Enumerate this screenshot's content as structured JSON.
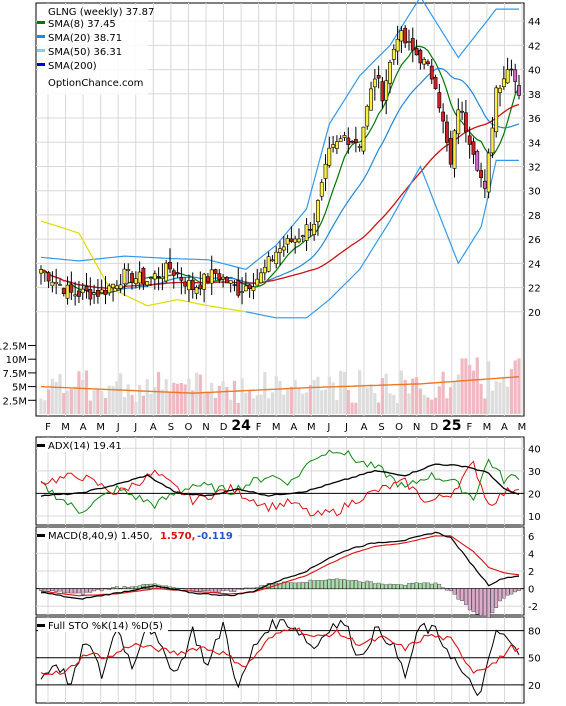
{
  "chart_data": [
    {
      "type": "candlestick",
      "panel": "price",
      "title": "GLNG (weekly) 37.87",
      "watermark": "OptionChance.com",
      "y_ticks": [
        20,
        22,
        24,
        26,
        28,
        30,
        32,
        34,
        36,
        38,
        40,
        42,
        44
      ],
      "ylim": [
        18,
        45.5
      ],
      "legend": [
        {
          "label": "SMA(8) 37.45",
          "color": "#007700"
        },
        {
          "label": "SMA(20) 38.71",
          "color": "#2288dd"
        },
        {
          "label": "SMA(50) 36.31",
          "color": "#88ccee"
        },
        {
          "label": "SMA(200)",
          "color": "#0000cc"
        }
      ],
      "x_month_labels": [
        "F",
        "M",
        "A",
        "M",
        "J",
        "J",
        "A",
        "S",
        "O",
        "N",
        "D",
        "24",
        "F",
        "M",
        "A",
        "M",
        "J",
        "J",
        "A",
        "S",
        "O",
        "N",
        "D",
        "25",
        "F",
        "M",
        "A",
        "M"
      ],
      "close_anchors": {
        "week": [
          0,
          8,
          16,
          22,
          28,
          34,
          40,
          46,
          52,
          58,
          62,
          68,
          72,
          76,
          80,
          84,
          88,
          90,
          94,
          98,
          100,
          104,
          108,
          110,
          114,
          117,
          120,
          124,
          126
        ],
        "close": [
          23.5,
          21.5,
          21.6,
          23.0,
          22.6,
          23.6,
          22.0,
          23.2,
          21.8,
          23.0,
          25.0,
          26.3,
          27.5,
          33.0,
          34.5,
          34.0,
          39.5,
          38.0,
          43.0,
          41.5,
          41.0,
          39.0,
          32.0,
          37.0,
          33.5,
          29.8,
          38.5,
          40.5,
          37.87
        ]
      },
      "bb_upper_anchors": {
        "week": [
          0,
          10,
          22,
          34,
          44,
          54,
          62,
          70,
          76,
          84,
          92,
          100,
          110,
          120,
          126
        ],
        "value": [
          24.5,
          24.2,
          24.6,
          24.4,
          24.3,
          23.5,
          25.5,
          28.5,
          35.5,
          39.5,
          42.0,
          46.0,
          41.0,
          45.0,
          45.0
        ]
      },
      "bb_lower_anchors": {
        "week": [
          0,
          10,
          18,
          28,
          36,
          44,
          54,
          62,
          70,
          76,
          84,
          92,
          100,
          110,
          116,
          120,
          126
        ],
        "value": [
          27.5,
          26.5,
          22.0,
          20.5,
          21.0,
          20.5,
          20.0,
          19.5,
          19.5,
          21.0,
          23.5,
          27.5,
          32.0,
          24.0,
          27.0,
          32.5,
          32.5
        ]
      }
    },
    {
      "type": "bar",
      "panel": "volume",
      "y_ticks": [
        "12.5M",
        "10M",
        "7.5M",
        "5M",
        "2.5M"
      ],
      "y_tick_values": [
        12.5,
        10,
        7.5,
        5,
        2.5
      ],
      "ylim": [
        0,
        13.5
      ],
      "avg_level_anchors": {
        "week": [
          0,
          40,
          70,
          100,
          126
        ],
        "value": [
          5.0,
          3.8,
          4.8,
          5.5,
          6.8
        ]
      }
    },
    {
      "type": "line",
      "panel": "adx",
      "label": "ADX(14) 19.41",
      "y_ticks": [
        10,
        20,
        30,
        40
      ],
      "ylim": [
        6,
        45
      ],
      "adx_anchors": {
        "week": [
          0,
          10,
          20,
          28,
          36,
          44,
          52,
          60,
          70,
          80,
          88,
          96,
          104,
          112,
          118,
          122,
          126
        ],
        "value": [
          19,
          20,
          24,
          28,
          20,
          19,
          22,
          19,
          21,
          26,
          30,
          28,
          33,
          32,
          29,
          22,
          19.4
        ]
      },
      "plus_di_anchors": {
        "week": [
          0,
          10,
          20,
          30,
          40,
          50,
          60,
          66,
          72,
          78,
          84,
          90,
          96,
          102,
          108,
          114,
          118,
          122,
          126
        ],
        "value": [
          24,
          12,
          22,
          15,
          24,
          21,
          28,
          25,
          36,
          40,
          34,
          30,
          22,
          28,
          26,
          18,
          35,
          26,
          28
        ]
      },
      "minus_di_anchors": {
        "week": [
          0,
          10,
          20,
          30,
          40,
          50,
          60,
          66,
          72,
          78,
          84,
          90,
          96,
          102,
          108,
          114,
          118,
          122,
          126
        ],
        "value": [
          25,
          28,
          20,
          29,
          17,
          22,
          14,
          16,
          10,
          12,
          18,
          22,
          25,
          16,
          20,
          33,
          15,
          20,
          23
        ]
      }
    },
    {
      "type": "line",
      "panel": "macd",
      "label": "MACD(8,40,9) 1.450,",
      "label_signal": "1.570,",
      "label_hist": "-0.119",
      "y_ticks": [
        -2,
        0,
        2,
        4,
        6
      ],
      "ylim": [
        -3,
        7
      ],
      "macd_anchors": {
        "week": [
          0,
          10,
          20,
          30,
          40,
          50,
          56,
          62,
          70,
          76,
          82,
          88,
          96,
          104,
          108,
          114,
          118,
          122,
          126
        ],
        "value": [
          -0.4,
          -1.2,
          -0.5,
          0.3,
          -0.5,
          -0.8,
          -0.3,
          0.8,
          2.0,
          3.5,
          4.6,
          5.2,
          5.5,
          6.4,
          5.8,
          2.5,
          0.4,
          1.2,
          1.45
        ]
      },
      "signal_anchors": {
        "week": [
          0,
          10,
          20,
          30,
          40,
          50,
          56,
          62,
          70,
          76,
          82,
          88,
          96,
          104,
          108,
          114,
          118,
          122,
          126
        ],
        "value": [
          -0.3,
          -0.8,
          -0.6,
          0.0,
          -0.3,
          -0.6,
          -0.4,
          0.4,
          1.5,
          2.8,
          4.0,
          4.8,
          5.2,
          6.0,
          6.0,
          4.2,
          2.4,
          1.8,
          1.57
        ]
      }
    },
    {
      "type": "line",
      "panel": "stochastic",
      "label": "Full STO %K(14) %D(5)",
      "y_ticks": [
        20,
        50,
        80
      ],
      "ylim": [
        0,
        95
      ],
      "k_anchors": {
        "week": [
          0,
          4,
          8,
          12,
          16,
          20,
          24,
          28,
          32,
          36,
          40,
          44,
          48,
          52,
          56,
          60,
          64,
          68,
          72,
          76,
          80,
          84,
          88,
          92,
          96,
          100,
          104,
          108,
          112,
          116,
          120,
          124,
          126
        ],
        "value": [
          28,
          45,
          20,
          70,
          30,
          85,
          40,
          90,
          55,
          35,
          80,
          40,
          88,
          15,
          60,
          85,
          92,
          80,
          60,
          85,
          88,
          50,
          80,
          70,
          30,
          85,
          78,
          55,
          25,
          10,
          80,
          65,
          50
        ]
      },
      "d_anchors": {
        "week": [
          0,
          6,
          12,
          18,
          24,
          30,
          36,
          42,
          48,
          54,
          60,
          66,
          72,
          78,
          84,
          90,
          96,
          102,
          108,
          114,
          120,
          124,
          126
        ],
        "value": [
          35,
          32,
          55,
          50,
          65,
          60,
          55,
          62,
          55,
          40,
          70,
          85,
          72,
          78,
          65,
          72,
          60,
          75,
          70,
          35,
          45,
          62,
          58
        ]
      }
    }
  ],
  "colors": {
    "bull_candle": "#ffee44",
    "bear_candle": "#cc2222",
    "purple_candle": "#cc66cc",
    "sma8": "#007700",
    "sma20": "#2288dd",
    "sma50": "#88ccee",
    "sma200": "#0000cc",
    "ma200_red": "#cc1111",
    "bb": "#3399ee",
    "bb_lower_yellow": "#dddd00",
    "vol_up": "#dddddd",
    "vol_down": "#f0b8c0",
    "vol_avg": "#ee7722",
    "adx": "#000000",
    "plus_di": "#118811",
    "minus_di": "#dd1111",
    "macd": "#000000",
    "macd_signal": "#dd1111",
    "hist_pos": "#aaddaa",
    "hist_neg": "#ddaacc"
  }
}
